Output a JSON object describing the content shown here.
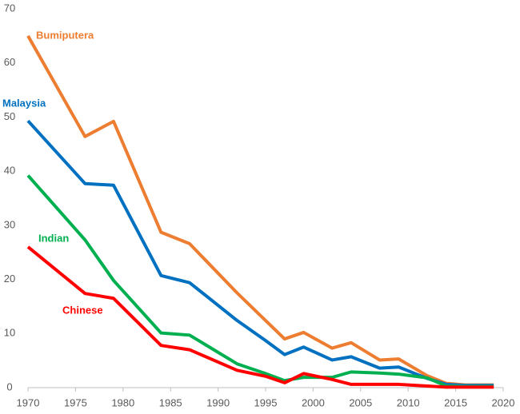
{
  "chart_data": {
    "type": "line",
    "x": [
      1970,
      1976,
      1979,
      1984,
      1987,
      1992,
      1995,
      1997,
      1999,
      2002,
      2004,
      2007,
      2009,
      2012,
      2014,
      2016,
      2019
    ],
    "series": [
      {
        "name": "Bumiputera",
        "color": "#ed7d31",
        "values": [
          65,
          46.4,
          49.2,
          28.7,
          26.6,
          17.5,
          12.4,
          9.0,
          10.2,
          7.3,
          8.3,
          5.1,
          5.3,
          2.2,
          0.8,
          0.5,
          0.5
        ]
      },
      {
        "name": "Malaysia",
        "color": "#0070c0",
        "values": [
          49.3,
          37.7,
          37.4,
          20.7,
          19.4,
          12.4,
          8.7,
          6.1,
          7.5,
          5.1,
          5.7,
          3.6,
          3.8,
          1.7,
          0.6,
          0.4,
          0.4
        ]
      },
      {
        "name": "Indian",
        "color": "#00b050",
        "values": [
          39.2,
          27.3,
          19.8,
          10.1,
          9.7,
          4.4,
          2.6,
          1.3,
          1.9,
          1.9,
          2.9,
          2.7,
          2.5,
          1.8,
          0.3,
          0.2,
          0.2
        ]
      },
      {
        "name": "Chinese",
        "color": "#ff0000",
        "values": [
          26.0,
          17.4,
          16.5,
          7.8,
          7.0,
          3.2,
          2.1,
          0.9,
          2.6,
          1.5,
          0.6,
          0.6,
          0.6,
          0.3,
          0.1,
          0.1,
          0.1
        ]
      }
    ],
    "xlim": [
      1970,
      2020
    ],
    "xticks": [
      1970,
      1975,
      1980,
      1985,
      1990,
      1995,
      2000,
      2005,
      2010,
      2015,
      2020
    ],
    "ylim": [
      0,
      70
    ],
    "yticks": [
      0,
      10,
      20,
      30,
      40,
      50,
      60,
      70
    ],
    "grid": false
  }
}
